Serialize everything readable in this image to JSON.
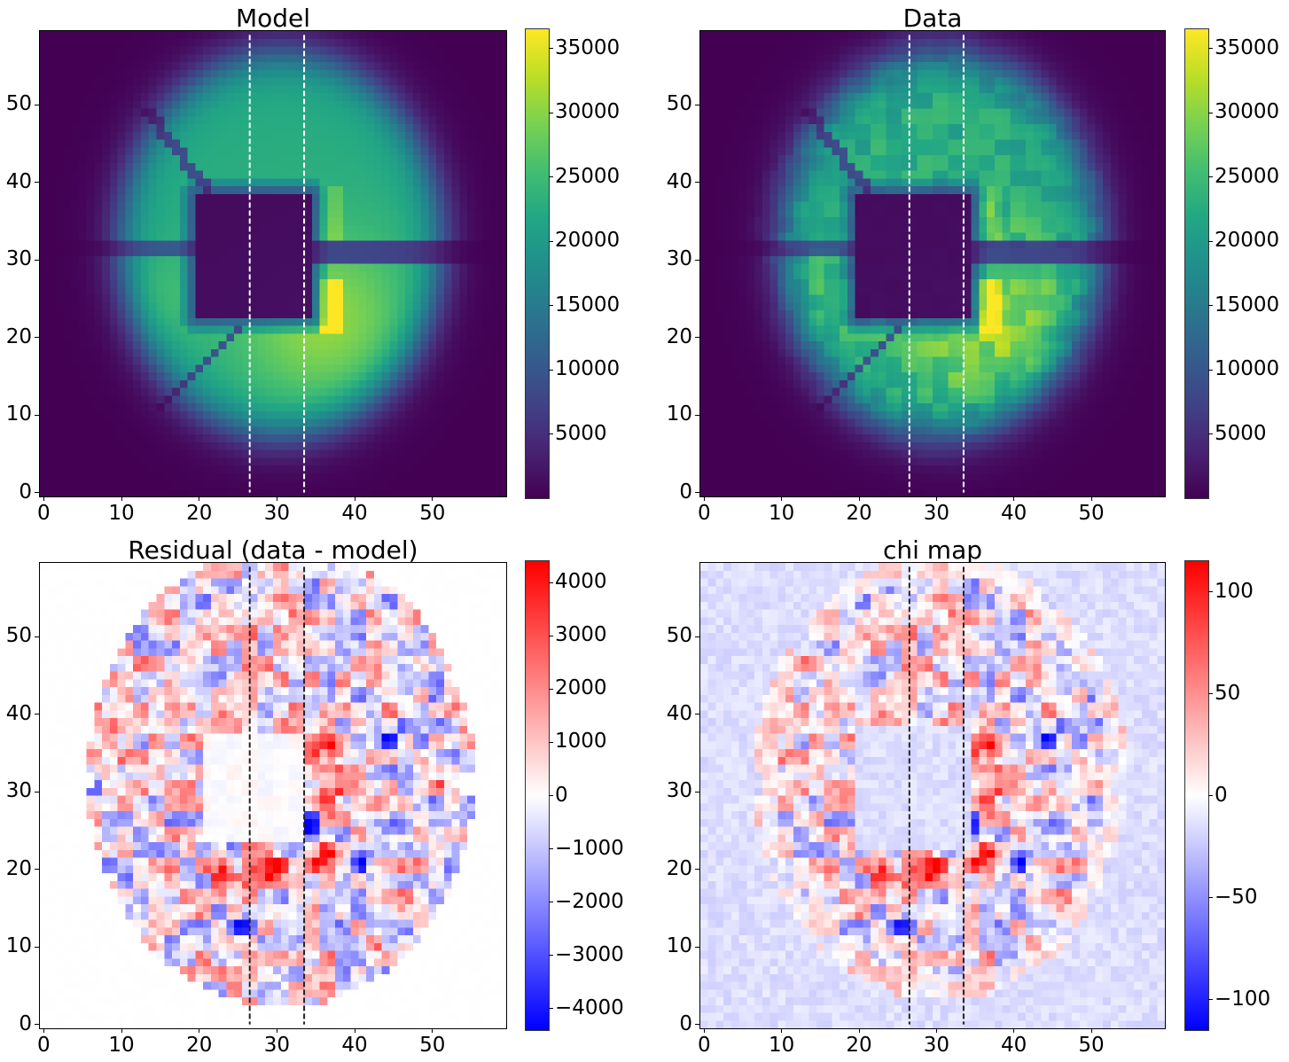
{
  "chart_data": [
    {
      "id": "model",
      "type": "heatmap",
      "title": "Model",
      "colormap": "viridis",
      "grid_size": [
        60,
        60
      ],
      "xlim": [
        -0.5,
        59.5
      ],
      "ylim": [
        -0.5,
        59.5
      ],
      "origin": "lower",
      "xticks": [
        0,
        10,
        20,
        30,
        40,
        50
      ],
      "yticks": [
        0,
        10,
        20,
        30,
        40,
        50
      ],
      "colorbar": {
        "vmin": 0,
        "vmax": 36500,
        "ticks": [
          5000,
          10000,
          15000,
          20000,
          25000,
          30000,
          35000
        ]
      },
      "vlines": {
        "x": [
          26.5,
          33.5
        ],
        "y_range": [
          0,
          59
        ],
        "color": "#ffffff",
        "style": "dashed"
      },
      "description": "Annular pupil image with central square obstruction (x 20-34, y 23-38) and spider arms; peak ~36000 near (37, 26)"
    },
    {
      "id": "data",
      "type": "heatmap",
      "title": "Data",
      "colormap": "viridis",
      "grid_size": [
        60,
        60
      ],
      "xlim": [
        -0.5,
        59.5
      ],
      "ylim": [
        -0.5,
        59.5
      ],
      "origin": "lower",
      "xticks": [
        0,
        10,
        20,
        30,
        40,
        50
      ],
      "yticks": [
        0,
        10,
        20,
        30,
        40,
        50
      ],
      "colorbar": {
        "vmin": 0,
        "vmax": 36500,
        "ticks": [
          5000,
          10000,
          15000,
          20000,
          25000,
          30000,
          35000
        ]
      },
      "vlines": {
        "x": [
          26.5,
          33.5
        ],
        "y_range": [
          0,
          59
        ],
        "color": "#ffffff",
        "style": "dashed"
      },
      "description": "Observed pupil image, similar to model with added pixel-level structure; peaks ~35000 near (37, 34) and (37, 26)"
    },
    {
      "id": "residual",
      "type": "heatmap",
      "title": "Residual (data - model)",
      "colormap": "bwr",
      "grid_size": [
        60,
        60
      ],
      "xlim": [
        -0.5,
        59.5
      ],
      "ylim": [
        -0.5,
        59.5
      ],
      "origin": "lower",
      "xticks": [
        0,
        10,
        20,
        30,
        40,
        50
      ],
      "yticks": [
        0,
        10,
        20,
        30,
        40,
        50
      ],
      "colorbar": {
        "vmin": -4400,
        "vmax": 4400,
        "ticks": [
          -4000,
          -3000,
          -2000,
          -1000,
          0,
          1000,
          2000,
          3000,
          4000
        ]
      },
      "vlines": {
        "x": [
          26.5,
          33.5
        ],
        "y_range": [
          0,
          59
        ],
        "color": "#222222",
        "style": "dashed"
      },
      "description": "Residuals within the annulus; strong positive near (37, 35), (37, 29), (23, 20), (29, 20); strong negative near (44, 37), (45, 26), (35, 26)"
    },
    {
      "id": "chi",
      "type": "heatmap",
      "title": "chi map",
      "colormap": "bwr",
      "grid_size": [
        60,
        60
      ],
      "xlim": [
        -0.5,
        59.5
      ],
      "ylim": [
        -0.5,
        59.5
      ],
      "origin": "lower",
      "xticks": [
        0,
        10,
        20,
        30,
        40,
        50
      ],
      "yticks": [
        0,
        10,
        20,
        30,
        40,
        50
      ],
      "colorbar": {
        "vmin": -115,
        "vmax": 115,
        "ticks": [
          -100,
          -50,
          0,
          50,
          100
        ]
      },
      "vlines": {
        "x": [
          26.5,
          33.5
        ],
        "y_range": [
          0,
          59
        ],
        "color": "#222222",
        "style": "dashed"
      },
      "description": "Normalized residuals; light negative background (~-15) outside the pupil, strong positive ~110 near (37, 29) and (34, 35)"
    }
  ]
}
